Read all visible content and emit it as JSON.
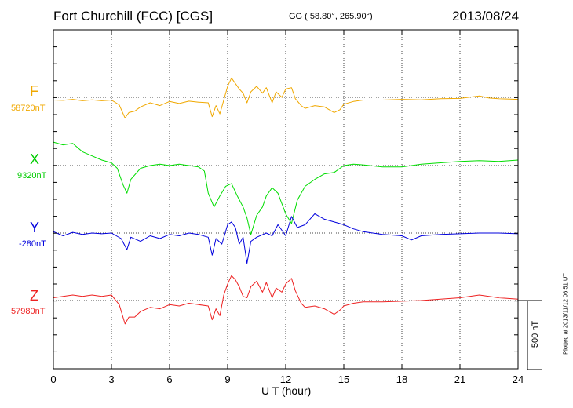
{
  "header": {
    "title": "Fort Churchill (FCC)  [CGS]",
    "coords": "GG ( 58.80°, 265.90°)",
    "date": "2013/08/24"
  },
  "footer": {
    "plotted": "Plotted at 2013/11/12 06:51  UT"
  },
  "chart_data": {
    "type": "line",
    "title": "Fort Churchill (FCC)  [CGS]",
    "xlabel": "U T (hour)",
    "ylabel": "",
    "xlim": [
      0,
      24
    ],
    "xticks": [
      0,
      3,
      6,
      9,
      12,
      15,
      18,
      21,
      24
    ],
    "xtick_labels": [
      "0",
      "3",
      "6",
      "9",
      "12",
      "15",
      "18",
      "21",
      "24"
    ],
    "y_unit": "nT",
    "scale_bar": {
      "label": "500 nT",
      "value": 500
    },
    "grid": "dotted vertical lines every 3 hours; dotted baseline per component",
    "series": [
      {
        "name": "F",
        "baseline_label": "58720nT",
        "baseline": 58720,
        "color": "#f0a800",
        "points": [
          [
            0,
            -20
          ],
          [
            0.5,
            -22
          ],
          [
            1,
            -15
          ],
          [
            1.5,
            -25
          ],
          [
            2,
            -18
          ],
          [
            2.5,
            -25
          ],
          [
            3,
            -20
          ],
          [
            3.4,
            -55
          ],
          [
            3.7,
            -150
          ],
          [
            3.9,
            -110
          ],
          [
            4.2,
            -100
          ],
          [
            4.5,
            -70
          ],
          [
            5,
            -40
          ],
          [
            5.5,
            -60
          ],
          [
            6,
            -30
          ],
          [
            6.5,
            -45
          ],
          [
            7,
            -28
          ],
          [
            7.5,
            -35
          ],
          [
            8,
            -40
          ],
          [
            8.2,
            -140
          ],
          [
            8.4,
            -60
          ],
          [
            8.6,
            -120
          ],
          [
            8.8,
            -20
          ],
          [
            9,
            80
          ],
          [
            9.2,
            140
          ],
          [
            9.4,
            100
          ],
          [
            9.6,
            60
          ],
          [
            9.8,
            30
          ],
          [
            10,
            -40
          ],
          [
            10.2,
            40
          ],
          [
            10.5,
            80
          ],
          [
            10.8,
            30
          ],
          [
            11,
            70
          ],
          [
            11.3,
            -40
          ],
          [
            11.5,
            40
          ],
          [
            11.8,
            0
          ],
          [
            12,
            60
          ],
          [
            12.3,
            70
          ],
          [
            12.5,
            -10
          ],
          [
            12.8,
            -60
          ],
          [
            13,
            -80
          ],
          [
            13.5,
            -60
          ],
          [
            14,
            -70
          ],
          [
            14.5,
            -110
          ],
          [
            14.8,
            -90
          ],
          [
            15,
            -50
          ],
          [
            15.5,
            -30
          ],
          [
            16,
            -20
          ],
          [
            17,
            -20
          ],
          [
            18,
            -15
          ],
          [
            19,
            -18
          ],
          [
            20,
            -10
          ],
          [
            21,
            -8
          ],
          [
            22,
            10
          ],
          [
            22.5,
            -5
          ],
          [
            23,
            -10
          ],
          [
            24,
            -15
          ]
        ]
      },
      {
        "name": "X",
        "baseline_label": "9320nT",
        "baseline": 9320,
        "color": "#00dd00",
        "points": [
          [
            0,
            170
          ],
          [
            0.5,
            150
          ],
          [
            1,
            160
          ],
          [
            1.5,
            100
          ],
          [
            2,
            70
          ],
          [
            2.5,
            40
          ],
          [
            3,
            20
          ],
          [
            3.3,
            -20
          ],
          [
            3.6,
            -140
          ],
          [
            3.8,
            -200
          ],
          [
            4,
            -100
          ],
          [
            4.5,
            -20
          ],
          [
            5,
            0
          ],
          [
            5.5,
            10
          ],
          [
            6,
            0
          ],
          [
            6.5,
            10
          ],
          [
            7,
            0
          ],
          [
            7.5,
            -10
          ],
          [
            7.8,
            -40
          ],
          [
            8,
            -200
          ],
          [
            8.3,
            -300
          ],
          [
            8.6,
            -220
          ],
          [
            8.9,
            -150
          ],
          [
            9.2,
            -130
          ],
          [
            9.5,
            -220
          ],
          [
            9.8,
            -300
          ],
          [
            10,
            -380
          ],
          [
            10.2,
            -500
          ],
          [
            10.5,
            -360
          ],
          [
            10.8,
            -300
          ],
          [
            11,
            -220
          ],
          [
            11.3,
            -160
          ],
          [
            11.6,
            -200
          ],
          [
            12,
            -350
          ],
          [
            12.3,
            -420
          ],
          [
            12.6,
            -250
          ],
          [
            13,
            -150
          ],
          [
            13.5,
            -100
          ],
          [
            14,
            -60
          ],
          [
            14.5,
            -50
          ],
          [
            15,
            0
          ],
          [
            15.5,
            10
          ],
          [
            16,
            5
          ],
          [
            17,
            -10
          ],
          [
            18,
            -10
          ],
          [
            19,
            10
          ],
          [
            20,
            20
          ],
          [
            21,
            30
          ],
          [
            22,
            35
          ],
          [
            23,
            30
          ],
          [
            24,
            40
          ]
        ]
      },
      {
        "name": "Y",
        "baseline_label": "-280nT",
        "baseline": -280,
        "color": "#0000dd",
        "points": [
          [
            0,
            10
          ],
          [
            0.5,
            -20
          ],
          [
            1,
            5
          ],
          [
            1.5,
            -10
          ],
          [
            2,
            0
          ],
          [
            2.5,
            -5
          ],
          [
            3,
            0
          ],
          [
            3.5,
            -40
          ],
          [
            3.8,
            -120
          ],
          [
            4,
            -30
          ],
          [
            4.5,
            -60
          ],
          [
            5,
            -20
          ],
          [
            5.5,
            -40
          ],
          [
            6,
            -10
          ],
          [
            6.5,
            -20
          ],
          [
            7,
            0
          ],
          [
            7.5,
            -10
          ],
          [
            8,
            -30
          ],
          [
            8.2,
            -160
          ],
          [
            8.4,
            -40
          ],
          [
            8.7,
            -80
          ],
          [
            9,
            60
          ],
          [
            9.2,
            80
          ],
          [
            9.4,
            40
          ],
          [
            9.6,
            -80
          ],
          [
            9.8,
            -30
          ],
          [
            10,
            -220
          ],
          [
            10.2,
            -60
          ],
          [
            10.5,
            -30
          ],
          [
            11,
            0
          ],
          [
            11.3,
            -20
          ],
          [
            11.6,
            60
          ],
          [
            12,
            -20
          ],
          [
            12.3,
            120
          ],
          [
            12.6,
            40
          ],
          [
            13,
            60
          ],
          [
            13.5,
            140
          ],
          [
            14,
            100
          ],
          [
            14.5,
            80
          ],
          [
            15,
            60
          ],
          [
            15.5,
            30
          ],
          [
            16,
            10
          ],
          [
            17,
            -10
          ],
          [
            18,
            -20
          ],
          [
            18.5,
            -50
          ],
          [
            19,
            -20
          ],
          [
            20,
            -10
          ],
          [
            21,
            -5
          ],
          [
            22,
            0
          ],
          [
            23,
            0
          ],
          [
            24,
            -5
          ]
        ]
      },
      {
        "name": "Z",
        "baseline_label": "57980nT",
        "baseline": 57980,
        "color": "#ee2222",
        "points": [
          [
            0,
            20
          ],
          [
            0.5,
            30
          ],
          [
            1,
            40
          ],
          [
            1.5,
            30
          ],
          [
            2,
            40
          ],
          [
            2.5,
            30
          ],
          [
            3,
            40
          ],
          [
            3.4,
            -30
          ],
          [
            3.7,
            -170
          ],
          [
            3.9,
            -120
          ],
          [
            4.2,
            -120
          ],
          [
            4.5,
            -80
          ],
          [
            5,
            -50
          ],
          [
            5.5,
            -60
          ],
          [
            6,
            -30
          ],
          [
            6.5,
            -40
          ],
          [
            7,
            -20
          ],
          [
            7.5,
            -30
          ],
          [
            8,
            -40
          ],
          [
            8.2,
            -140
          ],
          [
            8.4,
            -60
          ],
          [
            8.6,
            -110
          ],
          [
            8.8,
            40
          ],
          [
            9,
            120
          ],
          [
            9.2,
            180
          ],
          [
            9.4,
            150
          ],
          [
            9.6,
            100
          ],
          [
            9.8,
            30
          ],
          [
            10,
            20
          ],
          [
            10.2,
            100
          ],
          [
            10.5,
            140
          ],
          [
            10.8,
            60
          ],
          [
            11,
            130
          ],
          [
            11.3,
            20
          ],
          [
            11.5,
            90
          ],
          [
            11.8,
            60
          ],
          [
            12,
            120
          ],
          [
            12.3,
            160
          ],
          [
            12.5,
            70
          ],
          [
            12.8,
            -20
          ],
          [
            13,
            -50
          ],
          [
            13.5,
            -40
          ],
          [
            14,
            -60
          ],
          [
            14.5,
            -100
          ],
          [
            14.8,
            -70
          ],
          [
            15,
            -40
          ],
          [
            15.5,
            -20
          ],
          [
            16,
            -10
          ],
          [
            17,
            -10
          ],
          [
            18,
            -5
          ],
          [
            19,
            0
          ],
          [
            20,
            10
          ],
          [
            21,
            20
          ],
          [
            22,
            40
          ],
          [
            22.5,
            30
          ],
          [
            23,
            20
          ],
          [
            24,
            10
          ]
        ]
      }
    ]
  }
}
